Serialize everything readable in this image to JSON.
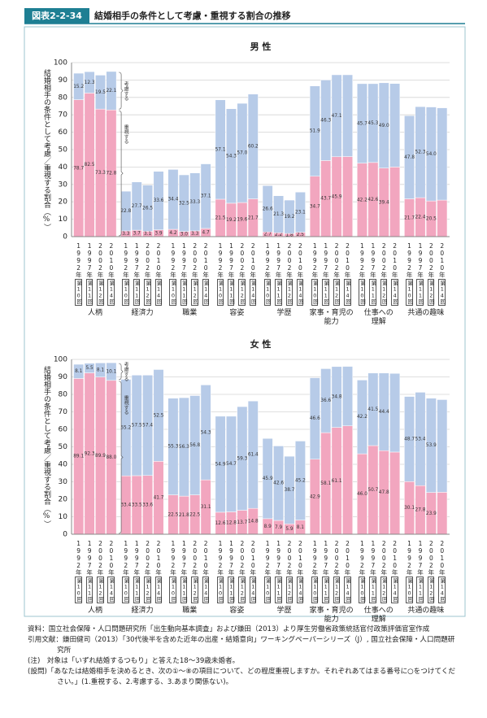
{
  "header": {
    "label": "図表2-2-34",
    "title": "結婚相手の条件として考慮・重視する割合の推移"
  },
  "chart_data": [
    {
      "type": "stacked-bar",
      "title": "男 性",
      "ylabel": "結婚相手の条件として考慮／重視する割合（%）",
      "categories": [
        "人柄",
        "経済力",
        "職業",
        "容姿",
        "学歴",
        "家事・育児の\n能力",
        "仕事への\n理解",
        "共通の趣味"
      ],
      "x": [
        "1992年",
        "1997年",
        "2002年",
        "2010年"
      ],
      "rounds": [
        "第10回",
        "第11回",
        "第12回",
        "第14回"
      ],
      "ylim": [
        0,
        100
      ],
      "yticks": [
        0,
        10,
        20,
        30,
        40,
        50,
        60,
        70,
        80,
        90,
        100
      ],
      "grid": true,
      "series": [
        {
          "name": "重視する",
          "color": "#f2a6bf",
          "values": [
            [
              78.7,
              82.5,
              73.3,
              72.8
            ],
            [
              3.3,
              3.7,
              3.1,
              3.9
            ],
            [
              4.2,
              3.0,
              3.3,
              4.7
            ],
            [
              21.5,
              19.2,
              19.6,
              21.7
            ],
            [
              2.7,
              2.2,
              1.8,
              2.5
            ],
            [
              34.7,
              43.7,
              45.9,
              46.0
            ],
            [
              42.2,
              42.6,
              39.4,
              40.0
            ],
            [
              21.7,
              22.4,
              20.5,
              21.0
            ]
          ],
          "value_labels": [
            [
              "78.7",
              "82.5",
              "73.3",
              "72.8"
            ],
            [
              "3.3",
              "3.7",
              "3.1",
              "3.9"
            ],
            [
              "4.2",
              "3.0",
              "3.3",
              "4.7"
            ],
            [
              "21.5",
              "19.2",
              "19.6",
              "21.7"
            ],
            [
              "2.7",
              "2.2",
              "1.8",
              "2.5"
            ],
            [
              "34.7",
              "43.7",
              "45.9",
              null
            ],
            [
              "42.2",
              "42.6",
              "39.4",
              null
            ],
            [
              "21.7",
              "22.4",
              "20.5",
              null
            ]
          ]
        },
        {
          "name": "考慮する",
          "color": "#b7cbe8",
          "values": [
            [
              15.2,
              12.3,
              19.5,
              22.1
            ],
            [
              22.8,
              27.7,
              26.5,
              33.6
            ],
            [
              34.4,
              32.5,
              33.3,
              37.1
            ],
            [
              57.1,
              54.3,
              57.0,
              60.2
            ],
            [
              26.6,
              21.3,
              19.2,
              23.1
            ],
            [
              51.9,
              46.3,
              47.1,
              47.0
            ],
            [
              45.7,
              45.3,
              49.0,
              48.0
            ],
            [
              47.8,
              52.3,
              54.0,
              53.0
            ]
          ],
          "value_labels": [
            [
              "15.2",
              "12.3",
              "19.5",
              "22.1"
            ],
            [
              "22.8",
              "27.7",
              "26.5",
              "33.6"
            ],
            [
              "34.4",
              "32.5",
              "33.3",
              "37.1"
            ],
            [
              "57.1",
              "54.3",
              "57.0",
              "60.2"
            ],
            [
              "26.6",
              "21.3",
              "19.2",
              "23.1"
            ],
            [
              "51.9",
              "46.3",
              "47.1",
              null
            ],
            [
              "45.7",
              "45.3",
              "49.0",
              null
            ],
            [
              "47.8",
              "52.3",
              "54.0",
              null
            ]
          ]
        }
      ]
    },
    {
      "type": "stacked-bar",
      "title": "女 性",
      "ylabel": "結婚相手の条件として考慮／重視する割合（%）",
      "categories": [
        "人柄",
        "経済力",
        "職業",
        "容姿",
        "学歴",
        "家事・育児の\n能力",
        "仕事への\n理解",
        "共通の趣味"
      ],
      "x": [
        "1992年",
        "1997年",
        "2002年",
        "2010年"
      ],
      "rounds": [
        "第10回",
        "第11回",
        "第12回",
        "第14回"
      ],
      "ylim": [
        0,
        100
      ],
      "yticks": [
        0,
        10,
        20,
        30,
        40,
        50,
        60,
        70,
        80,
        90,
        100
      ],
      "grid": true,
      "series": [
        {
          "name": "重視する",
          "color": "#f2a6bf",
          "values": [
            [
              89.1,
              92.3,
              89.9,
              88.0
            ],
            [
              33.4,
              33.5,
              33.6,
              41.7
            ],
            [
              22.5,
              21.8,
              22.5,
              31.1
            ],
            [
              12.6,
              12.8,
              13.7,
              14.8
            ],
            [
              8.9,
              7.9,
              5.9,
              8.1
            ],
            [
              42.9,
              58.1,
              61.1,
              62.0
            ],
            [
              46.0,
              50.7,
              47.8,
              47.0
            ],
            [
              30.1,
              27.8,
              23.9,
              24.0
            ]
          ],
          "value_labels": [
            [
              "89.1",
              "92.3",
              "89.9",
              "88.0"
            ],
            [
              "33.4",
              "33.5",
              "33.6",
              "41.7"
            ],
            [
              "22.5",
              "21.8",
              "22.5",
              "31.1"
            ],
            [
              "12.6",
              "12.8",
              "13.7",
              "14.8"
            ],
            [
              "8.9",
              "7.9",
              "5.9",
              "8.1"
            ],
            [
              "42.9",
              "58.1",
              "61.1",
              null
            ],
            [
              "46.0",
              "50.7",
              "47.8",
              null
            ],
            [
              "30.1",
              "27.8",
              "23.9",
              null
            ]
          ]
        },
        {
          "name": "考慮する",
          "color": "#b7cbe8",
          "values": [
            [
              8.1,
              5.5,
              8.1,
              10.1
            ],
            [
              55.2,
              57.5,
              57.4,
              52.5
            ],
            [
              55.3,
              56.3,
              56.8,
              54.3
            ],
            [
              54.9,
              54.7,
              59.3,
              61.4
            ],
            [
              45.9,
              42.6,
              38.7,
              45.2
            ],
            [
              46.6,
              36.6,
              34.8,
              34.0
            ],
            [
              42.2,
              41.5,
              44.4,
              45.0
            ],
            [
              48.7,
              53.4,
              53.9,
              53.0
            ]
          ],
          "value_labels": [
            [
              "8.1",
              "5.5",
              "8.1",
              "10.1"
            ],
            [
              "55.2",
              "57.5",
              "57.4",
              "52.5"
            ],
            [
              "55.3",
              "56.3",
              "56.8",
              "54.3"
            ],
            [
              "54.9",
              "54.7",
              "59.3",
              "61.4"
            ],
            [
              "45.9",
              "42.6",
              "38.7",
              "45.2"
            ],
            [
              "46.6",
              "36.6",
              "34.8",
              null
            ],
            [
              "42.2",
              "41.5",
              "44.4",
              null
            ],
            [
              "48.7",
              "53.4",
              "53.9",
              null
            ]
          ]
        }
      ]
    }
  ],
  "notes": [
    "資料：国立社会保障・人口問題研究所「出生動向基本調査」および鎌田（2013）より厚生労働省政策統括官付政策評価官室作成",
    "引用文献：鎌田健司（2013）「30代後半を含めた近年の出産・結婚意向」ワーキングペーパーシリーズ（J）, 国立社会保障・人口問題研究所",
    "(注)　対象は「いずれ結婚するつもり」と答えた18～39歳未婚者。",
    "(設問)「あなたは結婚相手を決めるとき、次の①～⑧の項目について、どの程度重視しますか。それぞれあてはまる番号に○をつけてください。」(1.重視する、2.考慮する、3.あまり関係ない)。"
  ]
}
